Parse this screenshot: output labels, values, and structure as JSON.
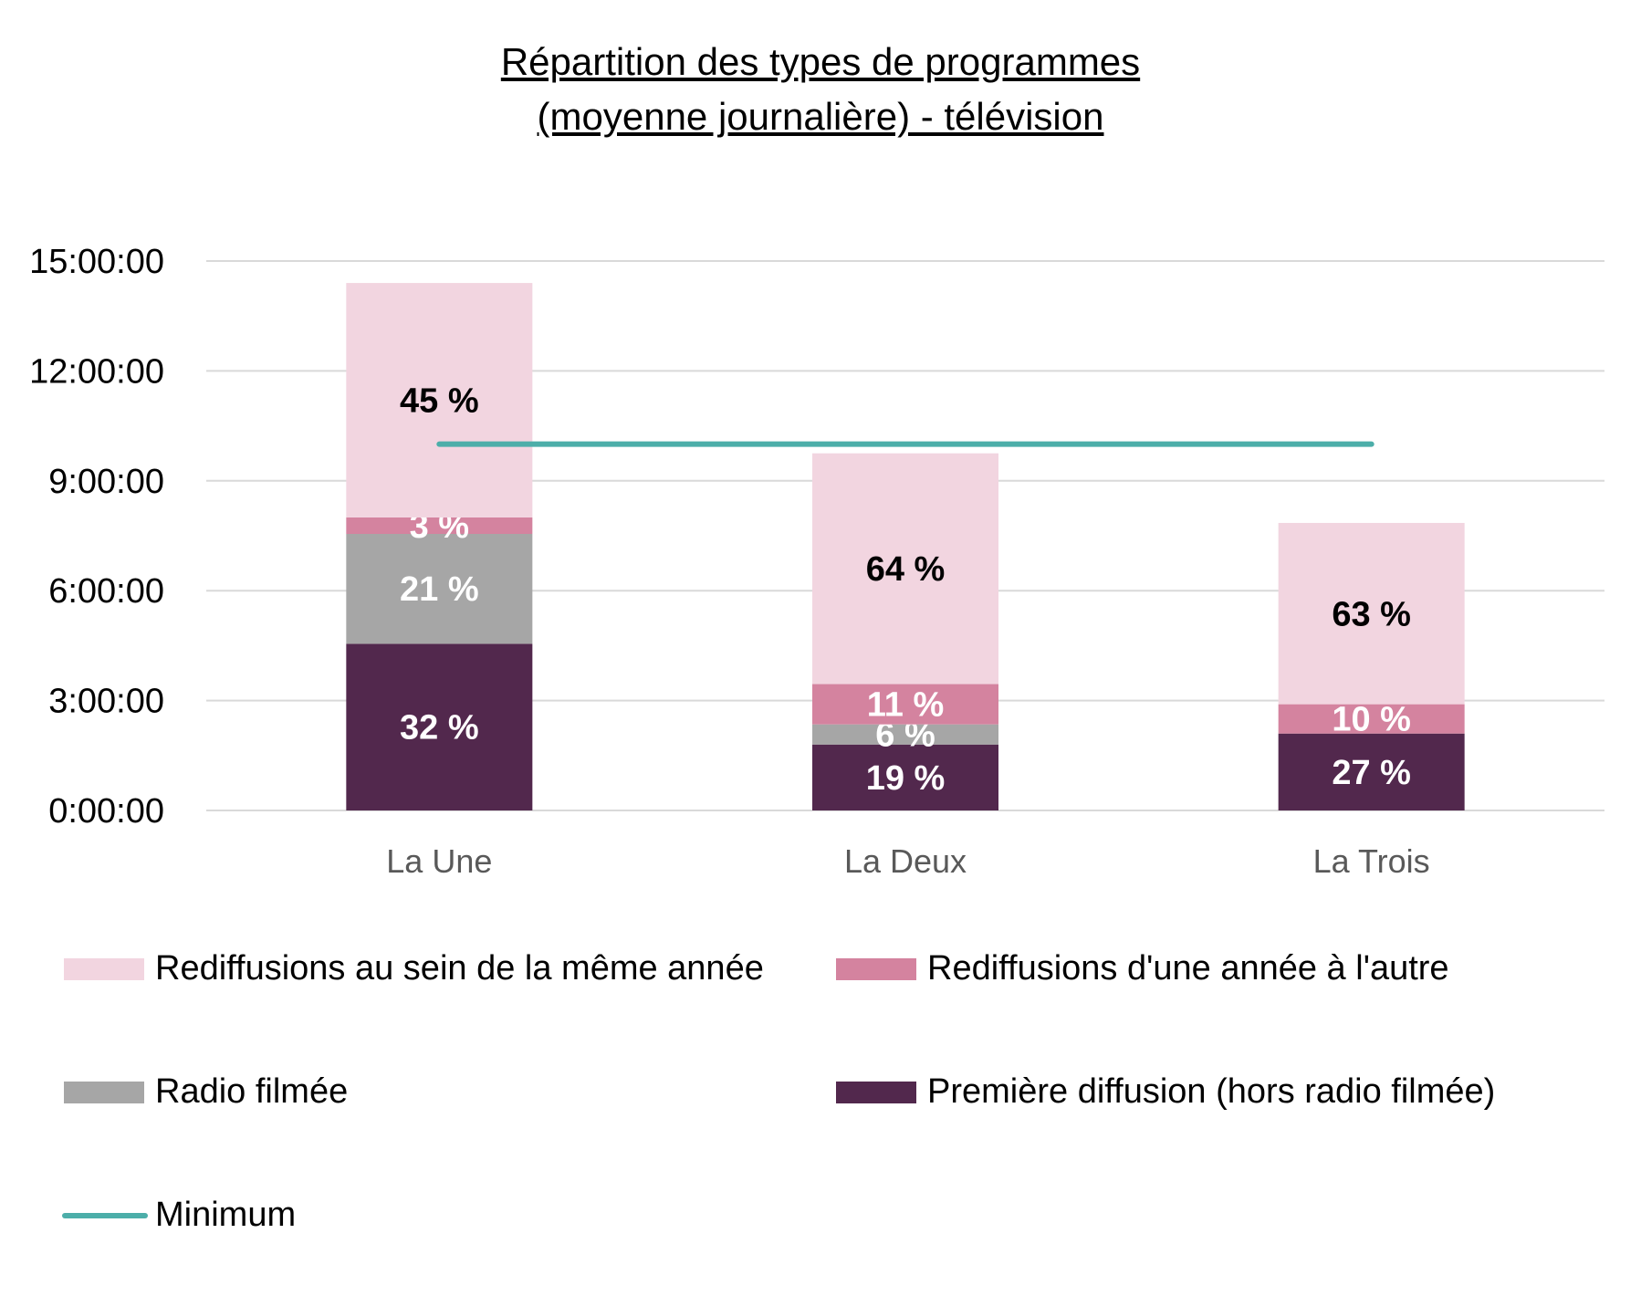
{
  "title_lines": [
    "Répartition des types de programmes",
    "(moyenne journalière) - télévision"
  ],
  "chart_data": {
    "type": "bar",
    "stacked": true,
    "title": "Répartition des types de programmes (moyenne journalière) - télévision",
    "categories": [
      "La Une",
      "La Deux",
      "La Trois"
    ],
    "y_ticks": [
      "0:00:00",
      "3:00:00",
      "6:00:00",
      "9:00:00",
      "12:00:00",
      "15:00:00"
    ],
    "ylim_hours": [
      0,
      15
    ],
    "grid": true,
    "legend_position": "bottom",
    "series": [
      {
        "name": "Première diffusion (hors radio filmée)",
        "color": "#52284d",
        "values_hours": [
          4.55,
          1.8,
          2.1
        ],
        "labels": [
          "32 %",
          "19 %",
          "27 %"
        ],
        "label_color": "#ffffff"
      },
      {
        "name": "Radio filmée",
        "color": "#a6a6a6",
        "values_hours": [
          3.0,
          0.55,
          0
        ],
        "labels": [
          "21 %",
          "6 %",
          ""
        ],
        "label_color": "#ffffff"
      },
      {
        "name": "Rediffusions d'une année à l'autre",
        "color": "#d4839f",
        "values_hours": [
          0.45,
          1.1,
          0.8
        ],
        "labels": [
          "3 %",
          "11 %",
          "10 %"
        ],
        "label_color": "#ffffff"
      },
      {
        "name": "Rediffusions au sein de la même année",
        "color": "#f2d5e0",
        "values_hours": [
          6.4,
          6.3,
          4.95
        ],
        "labels": [
          "45 %",
          "64 %",
          "63 %"
        ],
        "label_color": "#000000"
      }
    ],
    "minimum": {
      "name": "Minimum",
      "color": "#4caea9",
      "value_hours": 10.0
    }
  },
  "legend": {
    "items": [
      {
        "label": "Rediffusions au sein de la même année",
        "color": "#f2d5e0",
        "kind": "box"
      },
      {
        "label": "Rediffusions d'une année à l'autre",
        "color": "#d4839f",
        "kind": "box"
      },
      {
        "label": "Radio filmée",
        "color": "#a6a6a6",
        "kind": "box"
      },
      {
        "label": "Première diffusion (hors radio filmée)",
        "color": "#52284d",
        "kind": "box"
      },
      {
        "label": "Minimum",
        "color": "#4caea9",
        "kind": "line"
      }
    ]
  }
}
